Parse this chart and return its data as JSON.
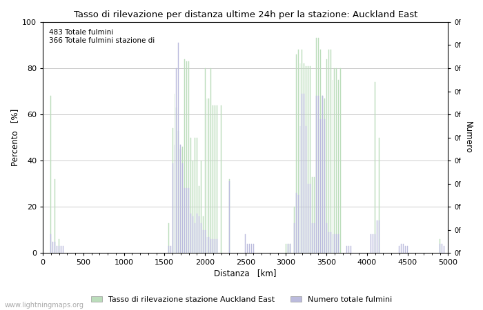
{
  "title": "Tasso di rilevazione per distanza ultime 24h per la stazione: Auckland East",
  "xlabel": "Distanza   [km]",
  "ylabel_left": "Percento   [%]",
  "ylabel_right": "Numero",
  "annotation_line1": "483 Totale fulmini",
  "annotation_line2": "366 Totale fulmini stazione di",
  "xlim": [
    0,
    5000
  ],
  "ylim": [
    0,
    100
  ],
  "xticks": [
    0,
    500,
    1000,
    1500,
    2000,
    2500,
    3000,
    3500,
    4000,
    4500,
    5000
  ],
  "yticks_left": [
    0,
    20,
    40,
    60,
    80,
    100
  ],
  "background_color": "#ffffff",
  "grid_color": "#cccccc",
  "green_color": "#bbddbb",
  "blue_color": "#bbbbdd",
  "legend_green": "Tasso di rilevazione stazione Auckland East",
  "legend_blue": "Numero totale fulmini",
  "watermark": "www.lightningmaps.org",
  "green_bars": [
    [
      100,
      68
    ],
    [
      150,
      32
    ],
    [
      200,
      6
    ],
    [
      1550,
      13
    ],
    [
      1600,
      54
    ],
    [
      1625,
      69
    ],
    [
      1650,
      63
    ],
    [
      1675,
      53
    ],
    [
      1700,
      45
    ],
    [
      1725,
      46
    ],
    [
      1750,
      84
    ],
    [
      1775,
      83
    ],
    [
      1800,
      83
    ],
    [
      1825,
      50
    ],
    [
      1850,
      40
    ],
    [
      1875,
      50
    ],
    [
      1900,
      50
    ],
    [
      1925,
      29
    ],
    [
      1950,
      40
    ],
    [
      1975,
      16
    ],
    [
      2000,
      80
    ],
    [
      2025,
      67
    ],
    [
      2050,
      67
    ],
    [
      2075,
      80
    ],
    [
      2100,
      64
    ],
    [
      2125,
      64
    ],
    [
      2150,
      64
    ],
    [
      2200,
      64
    ],
    [
      2300,
      32
    ],
    [
      3000,
      4
    ],
    [
      3025,
      4
    ],
    [
      3050,
      4
    ],
    [
      3100,
      20
    ],
    [
      3125,
      86
    ],
    [
      3150,
      88
    ],
    [
      3175,
      82
    ],
    [
      3200,
      88
    ],
    [
      3225,
      82
    ],
    [
      3250,
      81
    ],
    [
      3275,
      81
    ],
    [
      3300,
      81
    ],
    [
      3325,
      33
    ],
    [
      3350,
      33
    ],
    [
      3375,
      93
    ],
    [
      3400,
      93
    ],
    [
      3425,
      88
    ],
    [
      3450,
      68
    ],
    [
      3475,
      67
    ],
    [
      3500,
      84
    ],
    [
      3525,
      88
    ],
    [
      3550,
      88
    ],
    [
      3575,
      75
    ],
    [
      3600,
      80
    ],
    [
      3625,
      80
    ],
    [
      3650,
      75
    ],
    [
      3675,
      80
    ],
    [
      4100,
      74
    ],
    [
      4150,
      50
    ],
    [
      4900,
      6
    ]
  ],
  "blue_bars": [
    [
      100,
      8
    ],
    [
      125,
      5
    ],
    [
      150,
      5
    ],
    [
      175,
      3
    ],
    [
      200,
      3
    ],
    [
      225,
      3
    ],
    [
      250,
      3
    ],
    [
      1550,
      3
    ],
    [
      1575,
      3
    ],
    [
      1600,
      39
    ],
    [
      1625,
      47
    ],
    [
      1650,
      80
    ],
    [
      1675,
      91
    ],
    [
      1700,
      47
    ],
    [
      1725,
      39
    ],
    [
      1750,
      28
    ],
    [
      1775,
      28
    ],
    [
      1800,
      28
    ],
    [
      1825,
      17
    ],
    [
      1850,
      16
    ],
    [
      1875,
      13
    ],
    [
      1900,
      17
    ],
    [
      1925,
      16
    ],
    [
      1950,
      13
    ],
    [
      1975,
      10
    ],
    [
      2000,
      10
    ],
    [
      2025,
      7
    ],
    [
      2050,
      7
    ],
    [
      2075,
      6
    ],
    [
      2100,
      6
    ],
    [
      2125,
      6
    ],
    [
      2150,
      6
    ],
    [
      2300,
      31
    ],
    [
      2500,
      8
    ],
    [
      2525,
      4
    ],
    [
      2550,
      4
    ],
    [
      2575,
      4
    ],
    [
      2600,
      4
    ],
    [
      3025,
      4
    ],
    [
      3050,
      4
    ],
    [
      3100,
      13
    ],
    [
      3125,
      26
    ],
    [
      3150,
      25
    ],
    [
      3175,
      55
    ],
    [
      3200,
      69
    ],
    [
      3225,
      69
    ],
    [
      3250,
      55
    ],
    [
      3275,
      30
    ],
    [
      3300,
      30
    ],
    [
      3325,
      13
    ],
    [
      3350,
      13
    ],
    [
      3375,
      68
    ],
    [
      3400,
      68
    ],
    [
      3425,
      58
    ],
    [
      3450,
      68
    ],
    [
      3475,
      58
    ],
    [
      3500,
      13
    ],
    [
      3525,
      9
    ],
    [
      3550,
      9
    ],
    [
      3575,
      8
    ],
    [
      3600,
      8
    ],
    [
      3625,
      8
    ],
    [
      3650,
      8
    ],
    [
      3750,
      3
    ],
    [
      3775,
      3
    ],
    [
      3800,
      3
    ],
    [
      4050,
      8
    ],
    [
      4075,
      8
    ],
    [
      4100,
      8
    ],
    [
      4125,
      14
    ],
    [
      4150,
      14
    ],
    [
      4400,
      3
    ],
    [
      4425,
      4
    ],
    [
      4450,
      4
    ],
    [
      4475,
      3
    ],
    [
      4500,
      3
    ],
    [
      4900,
      4
    ],
    [
      4925,
      4
    ],
    [
      4950,
      3
    ]
  ]
}
